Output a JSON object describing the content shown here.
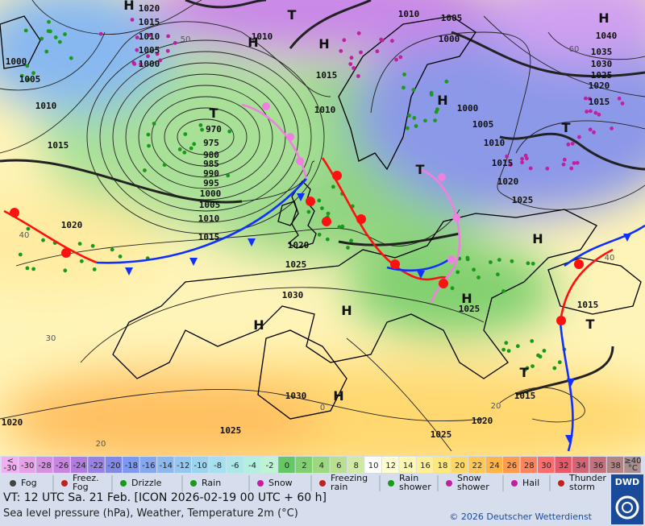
{
  "map": {
    "pressure_labels": [
      "1020",
      "1015",
      "1010",
      "1005",
      "1000",
      "1000",
      "1005",
      "1010",
      "1015",
      "1010",
      "1015",
      "1010",
      "1010",
      "1005",
      "1000",
      "1000",
      "1005",
      "1010",
      "1015",
      "1020",
      "1025",
      "1040",
      "1035",
      "1030",
      "1025",
      "1020",
      "1015",
      "970",
      "975",
      "980",
      "985",
      "990",
      "995",
      "1000",
      "1005",
      "1010",
      "1015",
      "1020",
      "1020",
      "1025",
      "1030",
      "1025",
      "1015",
      "1015",
      "1030",
      "1025",
      "1025",
      "1020",
      "1020"
    ],
    "centers": [
      "H",
      "T",
      "H",
      "H",
      "H",
      "T",
      "H",
      "T",
      "T",
      "H",
      "H",
      "H",
      "H",
      "T",
      "T",
      "H"
    ],
    "isotherm_labels": [
      "50",
      "60",
      "40",
      "40",
      "30",
      "20",
      "20",
      "0"
    ]
  },
  "scale": {
    "below": {
      "lines": [
        "<",
        "-30"
      ],
      "color": "#f0b0f0"
    },
    "cells": [
      {
        "label": "-30",
        "color": "#e8a0e8"
      },
      {
        "label": "-28",
        "color": "#d890e0"
      },
      {
        "label": "-26",
        "color": "#c884e0"
      },
      {
        "label": "-24",
        "color": "#b07ce0"
      },
      {
        "label": "-22",
        "color": "#9880e4"
      },
      {
        "label": "-20",
        "color": "#8088e8"
      },
      {
        "label": "-18",
        "color": "#7c98f0"
      },
      {
        "label": "-16",
        "color": "#84a8f0"
      },
      {
        "label": "-14",
        "color": "#8cb8f0"
      },
      {
        "label": "-12",
        "color": "#94c8f0"
      },
      {
        "label": "-10",
        "color": "#9cd4f0"
      },
      {
        "label": "-8",
        "color": "#a4e0f0"
      },
      {
        "label": "-6",
        "color": "#ace8e8"
      },
      {
        "label": "-4",
        "color": "#b4f0e0"
      },
      {
        "label": "-2",
        "color": "#bcf4d4"
      },
      {
        "label": "0",
        "color": "#64c864"
      },
      {
        "label": "2",
        "color": "#80d070"
      },
      {
        "label": "4",
        "color": "#9cd880"
      },
      {
        "label": "6",
        "color": "#b8e090"
      },
      {
        "label": "8",
        "color": "#d0eaa4"
      },
      {
        "label": "10",
        "color": "#ffffff"
      },
      {
        "label": "12",
        "color": "#ffffd0"
      },
      {
        "label": "14",
        "color": "#fff8b0"
      },
      {
        "label": "16",
        "color": "#fff094"
      },
      {
        "label": "18",
        "color": "#ffe878"
      },
      {
        "label": "20",
        "color": "#ffd864"
      },
      {
        "label": "22",
        "color": "#ffc854"
      },
      {
        "label": "24",
        "color": "#ffb448"
      },
      {
        "label": "26",
        "color": "#ff9c4c"
      },
      {
        "label": "28",
        "color": "#ff845c"
      },
      {
        "label": "30",
        "color": "#ff6c6c"
      },
      {
        "label": "32",
        "color": "#e85868"
      },
      {
        "label": "34",
        "color": "#d46474"
      },
      {
        "label": "36",
        "color": "#c4707c"
      },
      {
        "label": "38",
        "color": "#b48484"
      }
    ],
    "above": {
      "lines": [
        "≥40",
        "°C"
      ],
      "color": "#a89090"
    }
  },
  "legend": [
    [
      "Fog"
    ],
    [
      "Freez.",
      "Fog"
    ],
    [
      "Drizzle"
    ],
    [
      "Rain"
    ],
    [
      "Snow"
    ],
    [
      "Freezing",
      "rain"
    ],
    [
      "Rain",
      "shower"
    ],
    [
      "Snow",
      "shower"
    ],
    [
      "Hail"
    ],
    [
      "Thunder",
      "storm"
    ]
  ],
  "footer": {
    "valid_time": "VT: 12 UTC Sa.  21 Feb. [ICON 2026-02-19  00 UTC + 60 h]",
    "subtitle": "Sea level pressure (hPa), Weather, Temperature 2m (°C)",
    "copyright": "© 2026 Deutscher Wetterdienst",
    "logo": "DWD"
  }
}
